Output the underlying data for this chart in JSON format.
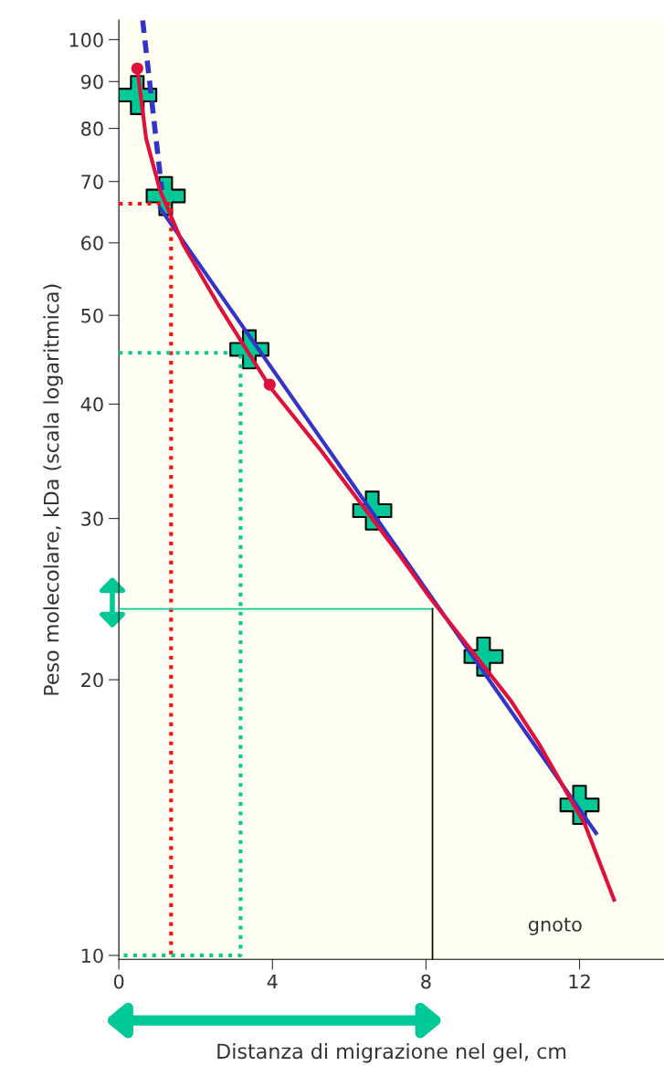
{
  "chart_data": {
    "type": "line",
    "xlabel": "Distanza di migrazione nel gel, cm",
    "ylabel": "Peso molecolare, kDa (scala logaritmica)",
    "log": "y",
    "grid": false,
    "xlim": [
      0,
      14.2
    ],
    "xticks": [
      0,
      4,
      8,
      12
    ],
    "ylim": [
      9.9,
      105
    ],
    "yticks": [
      10,
      20,
      30,
      40,
      50,
      60,
      70,
      80,
      90,
      100
    ],
    "annotations": [
      "gnoto"
    ],
    "series": [
      {
        "color": "#e0103c",
        "line_style": "solid",
        "x": [
          0.48,
          0.71,
          1.07,
          1.67,
          2.62,
          3.93,
          5.24,
          7.3,
          8.1,
          10.2,
          10.95,
          12.14,
          12.9
        ],
        "values": [
          93,
          78,
          68.5,
          59.8,
          51.1,
          41.8,
          35.7,
          27.4,
          24.6,
          19,
          17.0,
          13.9,
          11.5
        ]
      },
      {
        "type": "scatter",
        "color": "#e0103c",
        "marker": "circle",
        "x": [
          0.48,
          3.93
        ],
        "values": [
          93,
          42
        ]
      },
      {
        "color": "#3434c8",
        "line_style": "dashed",
        "x": [
          0.62,
          1.12
        ],
        "values": [
          105,
          68.5
        ]
      },
      {
        "color": "#3434c8",
        "line_style": "solid",
        "x": [
          1.07,
          12.43
        ],
        "values": [
          65.5,
          13.6
        ]
      },
      {
        "color": "#ff1010",
        "line_style": "dotted",
        "x": [
          0,
          1.36,
          1.36
        ],
        "values": [
          66.2,
          66.2,
          10
        ]
      },
      {
        "color": "#10c890",
        "line_style": "dotted",
        "x": [
          0,
          3.17,
          3.17,
          0
        ],
        "values": [
          45.5,
          45.5,
          10,
          10
        ]
      },
      {
        "color": "#10c890",
        "line_style": "solid",
        "x": [
          0,
          8.17
        ],
        "values": [
          23.9,
          23.9
        ]
      },
      {
        "color": "#000000",
        "line_style": "solid",
        "x": [
          8.17,
          8.17
        ],
        "values": [
          9.9,
          23.9
        ]
      },
      {
        "type": "scatter",
        "color": "#00c896",
        "marker": "cross",
        "x": [
          0.48,
          1.22,
          3.4,
          6.6,
          9.5,
          12.0
        ],
        "values": [
          87,
          67.5,
          45.9,
          30.6,
          21.2,
          14.6
        ]
      }
    ]
  }
}
